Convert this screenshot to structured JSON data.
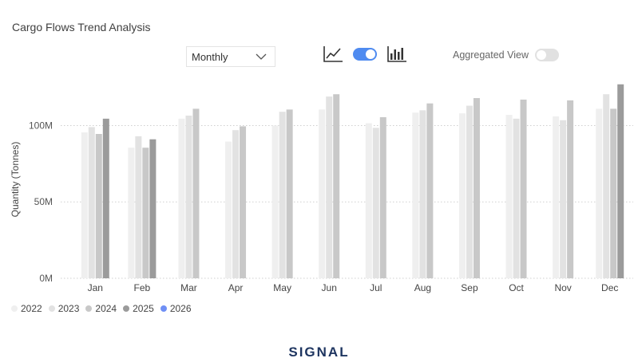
{
  "title": "Cargo Flows Trend Analysis",
  "period_select": {
    "value": "Monthly"
  },
  "view_icons": {
    "line": "line-chart-icon",
    "toggle": "toggle-on",
    "bar": "bar-chart-icon"
  },
  "aggregated_view": {
    "label": "Aggregated View",
    "enabled": false
  },
  "logo": "SIGNAL",
  "colors": {
    "2022": "#efefef",
    "2023": "#e2e2e2",
    "2024": "#c8c8c8",
    "2025": "#9b9b9b",
    "2026": "#6f8ff5",
    "accent": "#4f8bf0"
  },
  "chart_data": {
    "type": "bar",
    "ylabel": "Quantity (Tonnes)",
    "ylim": [
      0,
      130000000
    ],
    "yticks": [
      0,
      50000000,
      100000000
    ],
    "ytick_labels": [
      "0M",
      "50M",
      "100M"
    ],
    "grid": true,
    "legend_position": "bottom-left",
    "categories": [
      "Jan",
      "Feb",
      "Mar",
      "Apr",
      "May",
      "Jun",
      "Jul",
      "Aug",
      "Sep",
      "Oct",
      "Nov",
      "Dec"
    ],
    "series": [
      {
        "name": "2022",
        "values": [
          95500000,
          85500000,
          104500000,
          89500000,
          100000000,
          110500000,
          101500000,
          108500000,
          108000000,
          107000000,
          106000000,
          111000000
        ]
      },
      {
        "name": "2023",
        "values": [
          99000000,
          93000000,
          106500000,
          97000000,
          109000000,
          119000000,
          98500000,
          110000000,
          113000000,
          104500000,
          103500000,
          120500000
        ]
      },
      {
        "name": "2024",
        "values": [
          94500000,
          85500000,
          111000000,
          99500000,
          110500000,
          120500000,
          105500000,
          114500000,
          118000000,
          117000000,
          116500000,
          111000000
        ]
      },
      {
        "name": "2025",
        "values": [
          104500000,
          91000000,
          null,
          null,
          null,
          null,
          null,
          null,
          null,
          null,
          null,
          127000000
        ]
      },
      {
        "name": "2026",
        "values": [
          null,
          null,
          null,
          null,
          null,
          null,
          null,
          null,
          null,
          null,
          null,
          null
        ]
      }
    ]
  }
}
